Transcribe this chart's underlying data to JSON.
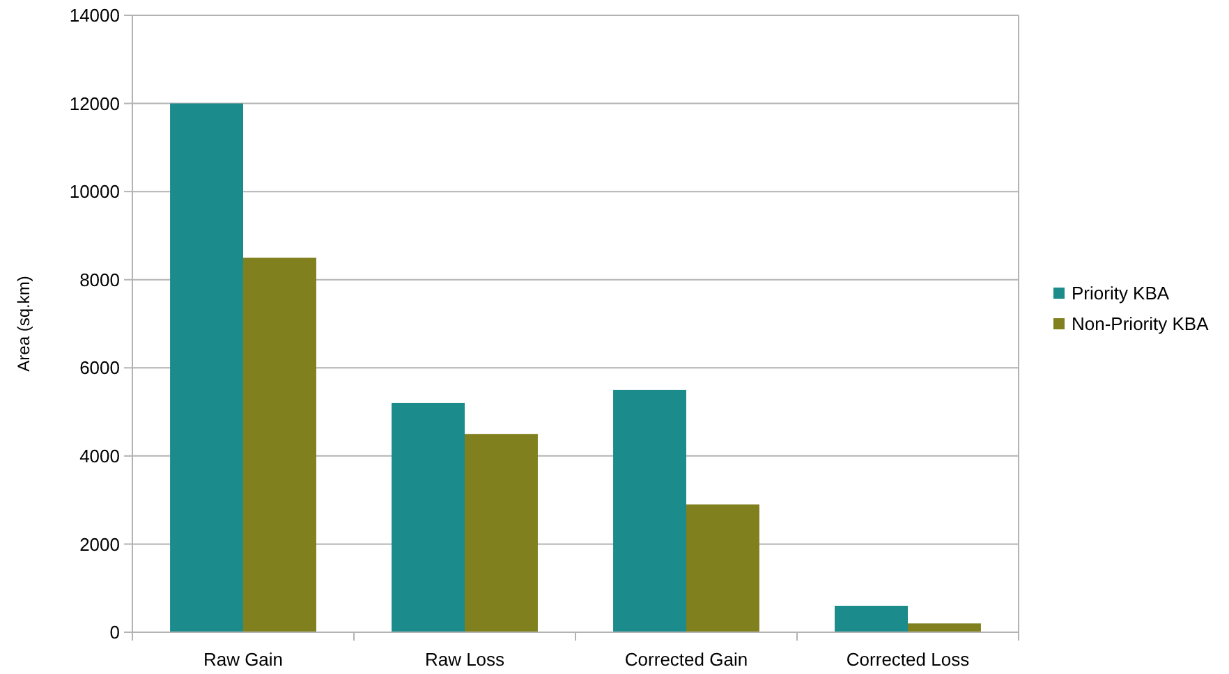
{
  "chart_data": {
    "type": "bar",
    "ylabel": "Area (sq.km)",
    "categories": [
      "Raw Gain",
      "Raw Loss",
      "Corrected Gain",
      "Corrected Loss"
    ],
    "series": [
      {
        "name": "Priority KBA",
        "color": "#1b8b8b",
        "values": [
          12000,
          5200,
          5500,
          600
        ]
      },
      {
        "name": "Non-Priority KBA",
        "color": "#80801f",
        "values": [
          8500,
          4500,
          2900,
          200
        ]
      }
    ],
    "ylim": [
      0,
      14000
    ],
    "yticks": [
      0,
      2000,
      4000,
      6000,
      8000,
      10000,
      12000,
      14000
    ],
    "grid": "y",
    "legend": "right"
  }
}
